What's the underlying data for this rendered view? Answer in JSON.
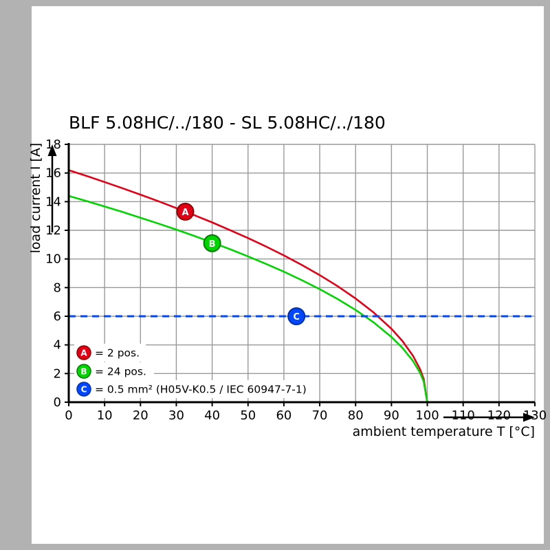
{
  "window": {
    "background": "#b2b2b2",
    "panel_background": "#ffffff"
  },
  "chart_data": {
    "type": "line",
    "title": "BLF 5.08HC/../180 - SL 5.08HC/../180",
    "xlabel": "ambient temperature T [°C]",
    "ylabel": "load current I [A]",
    "xlim": [
      0,
      130
    ],
    "ylim": [
      0,
      18
    ],
    "x_ticks": [
      0,
      10,
      20,
      30,
      40,
      50,
      60,
      70,
      80,
      90,
      100,
      110,
      120,
      130
    ],
    "y_ticks": [
      0,
      2,
      4,
      6,
      8,
      10,
      12,
      14,
      16,
      18
    ],
    "grid": true,
    "grid_color": "#999999",
    "axis_color": "#000000",
    "series": [
      {
        "name": "A",
        "legend_label": "= 2 pos.",
        "color": "#e30016",
        "edge_color": "#8f0000",
        "style": "solid",
        "marker_point": {
          "x": 32.5,
          "y": 13.3
        },
        "points": [
          [
            0,
            16.2
          ],
          [
            5,
            15.79
          ],
          [
            10,
            15.37
          ],
          [
            15,
            14.94
          ],
          [
            20,
            14.49
          ],
          [
            25,
            14.03
          ],
          [
            30,
            13.55
          ],
          [
            35,
            13.06
          ],
          [
            40,
            12.55
          ],
          [
            45,
            12.01
          ],
          [
            50,
            11.46
          ],
          [
            55,
            10.87
          ],
          [
            60,
            10.25
          ],
          [
            65,
            9.58
          ],
          [
            70,
            8.87
          ],
          [
            75,
            8.1
          ],
          [
            80,
            7.24
          ],
          [
            85,
            6.27
          ],
          [
            90,
            5.12
          ],
          [
            93,
            4.29
          ],
          [
            96,
            3.24
          ],
          [
            98,
            2.29
          ],
          [
            99,
            1.62
          ],
          [
            100,
            0
          ]
        ]
      },
      {
        "name": "B",
        "legend_label": "= 24 pos.",
        "color": "#00d500",
        "edge_color": "#007a00",
        "style": "solid",
        "marker_point": {
          "x": 40,
          "y": 11.1
        },
        "points": [
          [
            0,
            14.4
          ],
          [
            5,
            14.04
          ],
          [
            10,
            13.66
          ],
          [
            15,
            13.28
          ],
          [
            20,
            12.88
          ],
          [
            25,
            12.47
          ],
          [
            30,
            12.05
          ],
          [
            35,
            11.61
          ],
          [
            40,
            11.15
          ],
          [
            45,
            10.68
          ],
          [
            50,
            10.18
          ],
          [
            55,
            9.66
          ],
          [
            60,
            9.11
          ],
          [
            65,
            8.52
          ],
          [
            70,
            7.89
          ],
          [
            75,
            7.2
          ],
          [
            80,
            6.44
          ],
          [
            85,
            5.58
          ],
          [
            90,
            4.55
          ],
          [
            93,
            3.81
          ],
          [
            96,
            2.88
          ],
          [
            98,
            2.04
          ],
          [
            99,
            1.44
          ],
          [
            100,
            0
          ]
        ]
      },
      {
        "name": "C",
        "legend_label": "= 0.5 mm² (H05V-K0.5 / IEC 60947-7-1)",
        "color": "#0047ff",
        "edge_color": "#0030aa",
        "style": "dashed",
        "marker_point": {
          "x": 63.5,
          "y": 6
        },
        "points": [
          [
            0,
            6
          ],
          [
            130,
            6
          ]
        ]
      }
    ]
  }
}
